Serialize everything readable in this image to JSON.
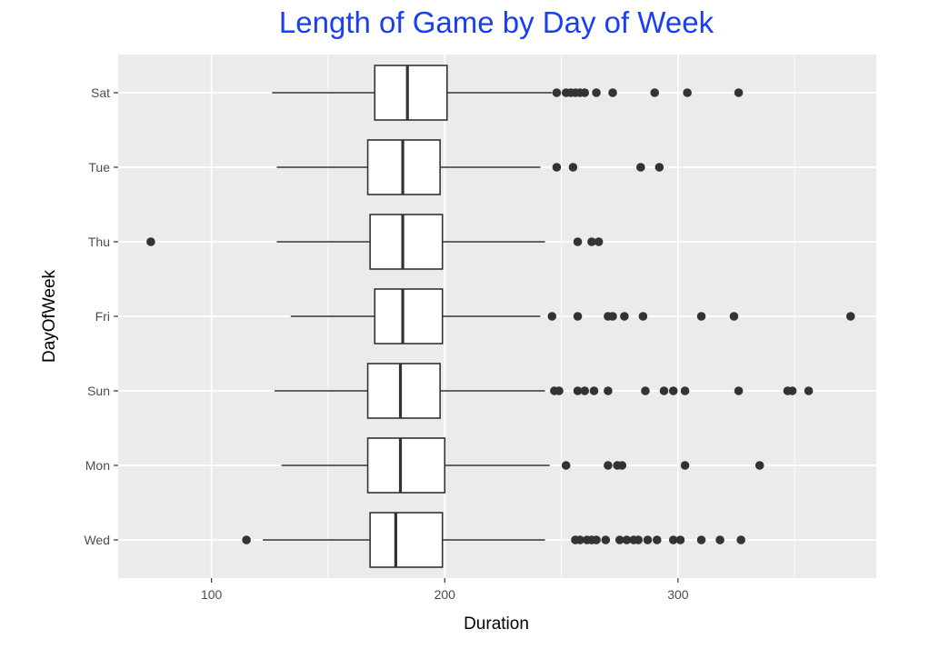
{
  "chart_data": {
    "type": "boxplot",
    "orientation": "horizontal",
    "title": "Length of Game by Day of Week",
    "xlabel": "Duration",
    "ylabel": "DayOfWeek",
    "xlim": [
      60,
      385
    ],
    "xticks": [
      100,
      200,
      300
    ],
    "xminor": [
      150,
      250,
      350
    ],
    "grid": true,
    "title_color": "#1a3ff0",
    "categories": [
      "Sat",
      "Tue",
      "Thu",
      "Fri",
      "Sun",
      "Mon",
      "Wed"
    ],
    "boxes": [
      {
        "category": "Sat",
        "whisker_low": 126,
        "q1": 170,
        "median": 184,
        "q3": 201,
        "whisker_high": 246,
        "outliers": [
          248,
          252,
          254,
          256,
          258,
          260,
          265,
          272,
          290,
          304,
          326
        ]
      },
      {
        "category": "Tue",
        "whisker_low": 128,
        "q1": 167,
        "median": 182,
        "q3": 198,
        "whisker_high": 241,
        "outliers": [
          248,
          255,
          284,
          292
        ]
      },
      {
        "category": "Thu",
        "whisker_low": 128,
        "q1": 168,
        "median": 182,
        "q3": 199,
        "whisker_high": 243,
        "outliers": [
          74,
          257,
          263,
          266
        ]
      },
      {
        "category": "Fri",
        "whisker_low": 134,
        "q1": 170,
        "median": 182,
        "q3": 199,
        "whisker_high": 241,
        "outliers": [
          246,
          257,
          270,
          272,
          277,
          285,
          310,
          324,
          374
        ]
      },
      {
        "category": "Sun",
        "whisker_low": 127,
        "q1": 167,
        "median": 181,
        "q3": 198,
        "whisker_high": 243,
        "outliers": [
          247,
          249,
          257,
          260,
          264,
          270,
          286,
          294,
          298,
          303,
          326,
          347,
          349,
          356
        ]
      },
      {
        "category": "Mon",
        "whisker_low": 130,
        "q1": 167,
        "median": 181,
        "q3": 200,
        "whisker_high": 245,
        "outliers": [
          252,
          270,
          274,
          276,
          303,
          335
        ]
      },
      {
        "category": "Wed",
        "whisker_low": 122,
        "q1": 168,
        "median": 179,
        "q3": 199,
        "whisker_high": 243,
        "outliers": [
          115,
          256,
          258,
          261,
          263,
          265,
          269,
          275,
          278,
          281,
          283,
          287,
          291,
          298,
          301,
          310,
          318,
          327
        ]
      }
    ]
  }
}
